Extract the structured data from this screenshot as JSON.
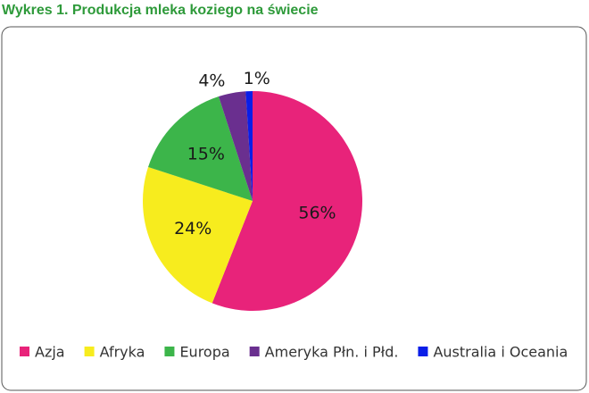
{
  "chart_data": {
    "type": "pie",
    "title": "Wykres 1. Produkcja mleka koziego na świecie",
    "categories": [
      "Azja",
      "Afryka",
      "Europa",
      "Ameryka Płn. i Płd.",
      "Australia i Oceania"
    ],
    "values": [
      56,
      24,
      15,
      4,
      1
    ],
    "value_labels": [
      "56%",
      "24%",
      "15%",
      "4%",
      "1%"
    ],
    "colors": [
      "#e8237a",
      "#f7ec1e",
      "#3cb54a",
      "#6a2f8f",
      "#0a1ee8"
    ],
    "legend": "bottom"
  }
}
